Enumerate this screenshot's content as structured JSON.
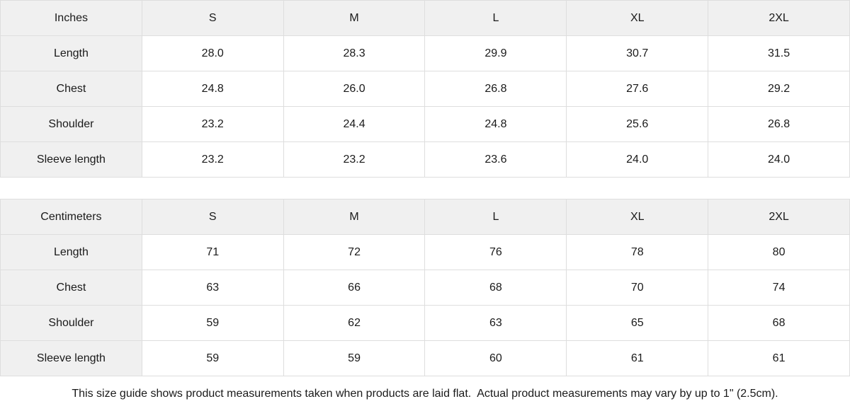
{
  "tables": [
    {
      "unit_label": "Inches",
      "sizes": [
        "S",
        "M",
        "L",
        "XL",
        "2XL"
      ],
      "rows": [
        {
          "label": "Length",
          "values": [
            "28.0",
            "28.3",
            "29.9",
            "30.7",
            "31.5"
          ]
        },
        {
          "label": "Chest",
          "values": [
            "24.8",
            "26.0",
            "26.8",
            "27.6",
            "29.2"
          ]
        },
        {
          "label": "Shoulder",
          "values": [
            "23.2",
            "24.4",
            "24.8",
            "25.6",
            "26.8"
          ]
        },
        {
          "label": "Sleeve length",
          "values": [
            "23.2",
            "23.2",
            "23.6",
            "24.0",
            "24.0"
          ]
        }
      ]
    },
    {
      "unit_label": "Centimeters",
      "sizes": [
        "S",
        "M",
        "L",
        "XL",
        "2XL"
      ],
      "rows": [
        {
          "label": "Length",
          "values": [
            "71",
            "72",
            "76",
            "78",
            "80"
          ]
        },
        {
          "label": "Chest",
          "values": [
            "63",
            "66",
            "68",
            "70",
            "74"
          ]
        },
        {
          "label": "Shoulder",
          "values": [
            "59",
            "62",
            "63",
            "65",
            "68"
          ]
        },
        {
          "label": "Sleeve length",
          "values": [
            "59",
            "59",
            "60",
            "61",
            "61"
          ]
        }
      ]
    }
  ],
  "footer": {
    "note": "This size guide shows product measurements taken when products are laid flat.  Actual product measurements may vary by up to 1\" (2.5cm)."
  },
  "colors": {
    "shaded_cell_bg": "#f0f0f0",
    "border": "#dedede",
    "text": "#1a1a1a",
    "background": "#ffffff"
  }
}
